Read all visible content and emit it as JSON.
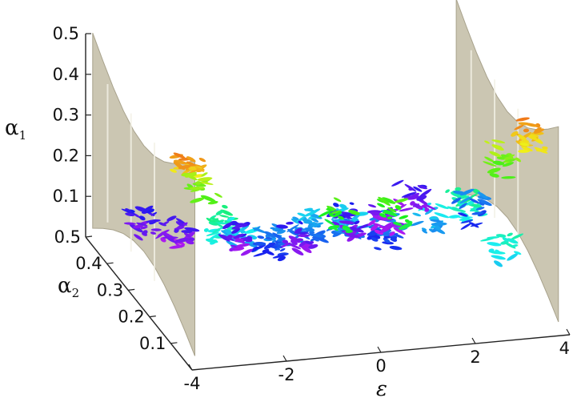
{
  "chart_data": {
    "type": "scatter",
    "dimensions": 3,
    "title": "",
    "axes": {
      "x": {
        "label": "ε",
        "range": [
          -4,
          4
        ],
        "ticks": [
          "-4",
          "-2",
          "0",
          "2",
          "4"
        ]
      },
      "y": {
        "label": "α",
        "label_subscript": "2",
        "range": [
          0,
          0.5
        ],
        "ticks": [
          "0.1",
          "0.2",
          "0.3",
          "0.4",
          "0.5"
        ]
      },
      "z": {
        "label": "α",
        "label_subscript": "1",
        "range": [
          0,
          0.5
        ],
        "ticks": [
          "0.1",
          "0.2",
          "0.3",
          "0.4",
          "0.5"
        ]
      }
    },
    "colormap": "rainbow by α1 (magenta = low, red/orange = high)",
    "colors": {
      "low": "#c020e0",
      "mid_low": "#3050f0",
      "mid": "#20d0e0",
      "mid_high": "#40e040",
      "high": "#f0a020",
      "top": "#f04020",
      "side_walls": "#cbc6b2"
    },
    "side_walls": [
      {
        "name": "left wall",
        "epsilon": -4,
        "color": "#cbc6b2"
      },
      {
        "name": "right wall",
        "epsilon": 4,
        "color": "#cbc6b2"
      }
    ],
    "clusters": [
      {
        "epsilon": -3.6,
        "alpha2": 0.1,
        "alpha1": 0.43,
        "count": 28
      },
      {
        "epsilon": -3.2,
        "alpha2": 0.14,
        "alpha1": 0.35,
        "count": 22
      },
      {
        "epsilon": -2.6,
        "alpha2": 0.18,
        "alpha1": 0.22,
        "count": 30
      },
      {
        "epsilon": -2.0,
        "alpha2": 0.22,
        "alpha1": 0.17,
        "count": 20
      },
      {
        "epsilon": -1.2,
        "alpha2": 0.25,
        "alpha1": 0.12,
        "count": 36
      },
      {
        "epsilon": -0.4,
        "alpha2": 0.25,
        "alpha1": 0.15,
        "count": 40
      },
      {
        "epsilon": 0.4,
        "alpha2": 0.25,
        "alpha1": 0.15,
        "count": 40
      },
      {
        "epsilon": 1.2,
        "alpha2": 0.25,
        "alpha1": 0.12,
        "count": 36
      },
      {
        "epsilon": 2.0,
        "alpha2": 0.22,
        "alpha1": 0.17,
        "count": 20
      },
      {
        "epsilon": 2.6,
        "alpha2": 0.18,
        "alpha1": 0.22,
        "count": 30
      },
      {
        "epsilon": 3.2,
        "alpha2": 0.14,
        "alpha1": 0.35,
        "count": 22
      },
      {
        "epsilon": 3.6,
        "alpha2": 0.1,
        "alpha1": 0.43,
        "count": 28
      },
      {
        "epsilon": -3.0,
        "alpha2": 0.45,
        "alpha1": 0.06,
        "count": 26
      },
      {
        "epsilon": -2.4,
        "alpha2": 0.42,
        "alpha1": 0.04,
        "count": 24
      },
      {
        "epsilon": -1.4,
        "alpha2": 0.38,
        "alpha1": 0.05,
        "count": 22
      },
      {
        "epsilon": -0.2,
        "alpha2": 0.35,
        "alpha1": 0.05,
        "count": 20
      },
      {
        "epsilon": 1.0,
        "alpha2": 0.38,
        "alpha1": 0.06,
        "count": 24
      },
      {
        "epsilon": 2.0,
        "alpha2": 0.42,
        "alpha1": 0.03,
        "count": 26
      },
      {
        "epsilon": 2.8,
        "alpha2": 0.46,
        "alpha1": 0.05,
        "count": 24
      },
      {
        "epsilon": -0.6,
        "alpha2": 0.06,
        "alpha1": 0.3,
        "count": 16
      },
      {
        "epsilon": 0.6,
        "alpha2": 0.06,
        "alpha1": 0.3,
        "count": 16
      },
      {
        "epsilon": 2.8,
        "alpha2": 0.05,
        "alpha1": 0.2,
        "count": 18
      },
      {
        "epsilon": 3.3,
        "alpha2": 0.3,
        "alpha1": 0.12,
        "count": 18
      }
    ]
  }
}
